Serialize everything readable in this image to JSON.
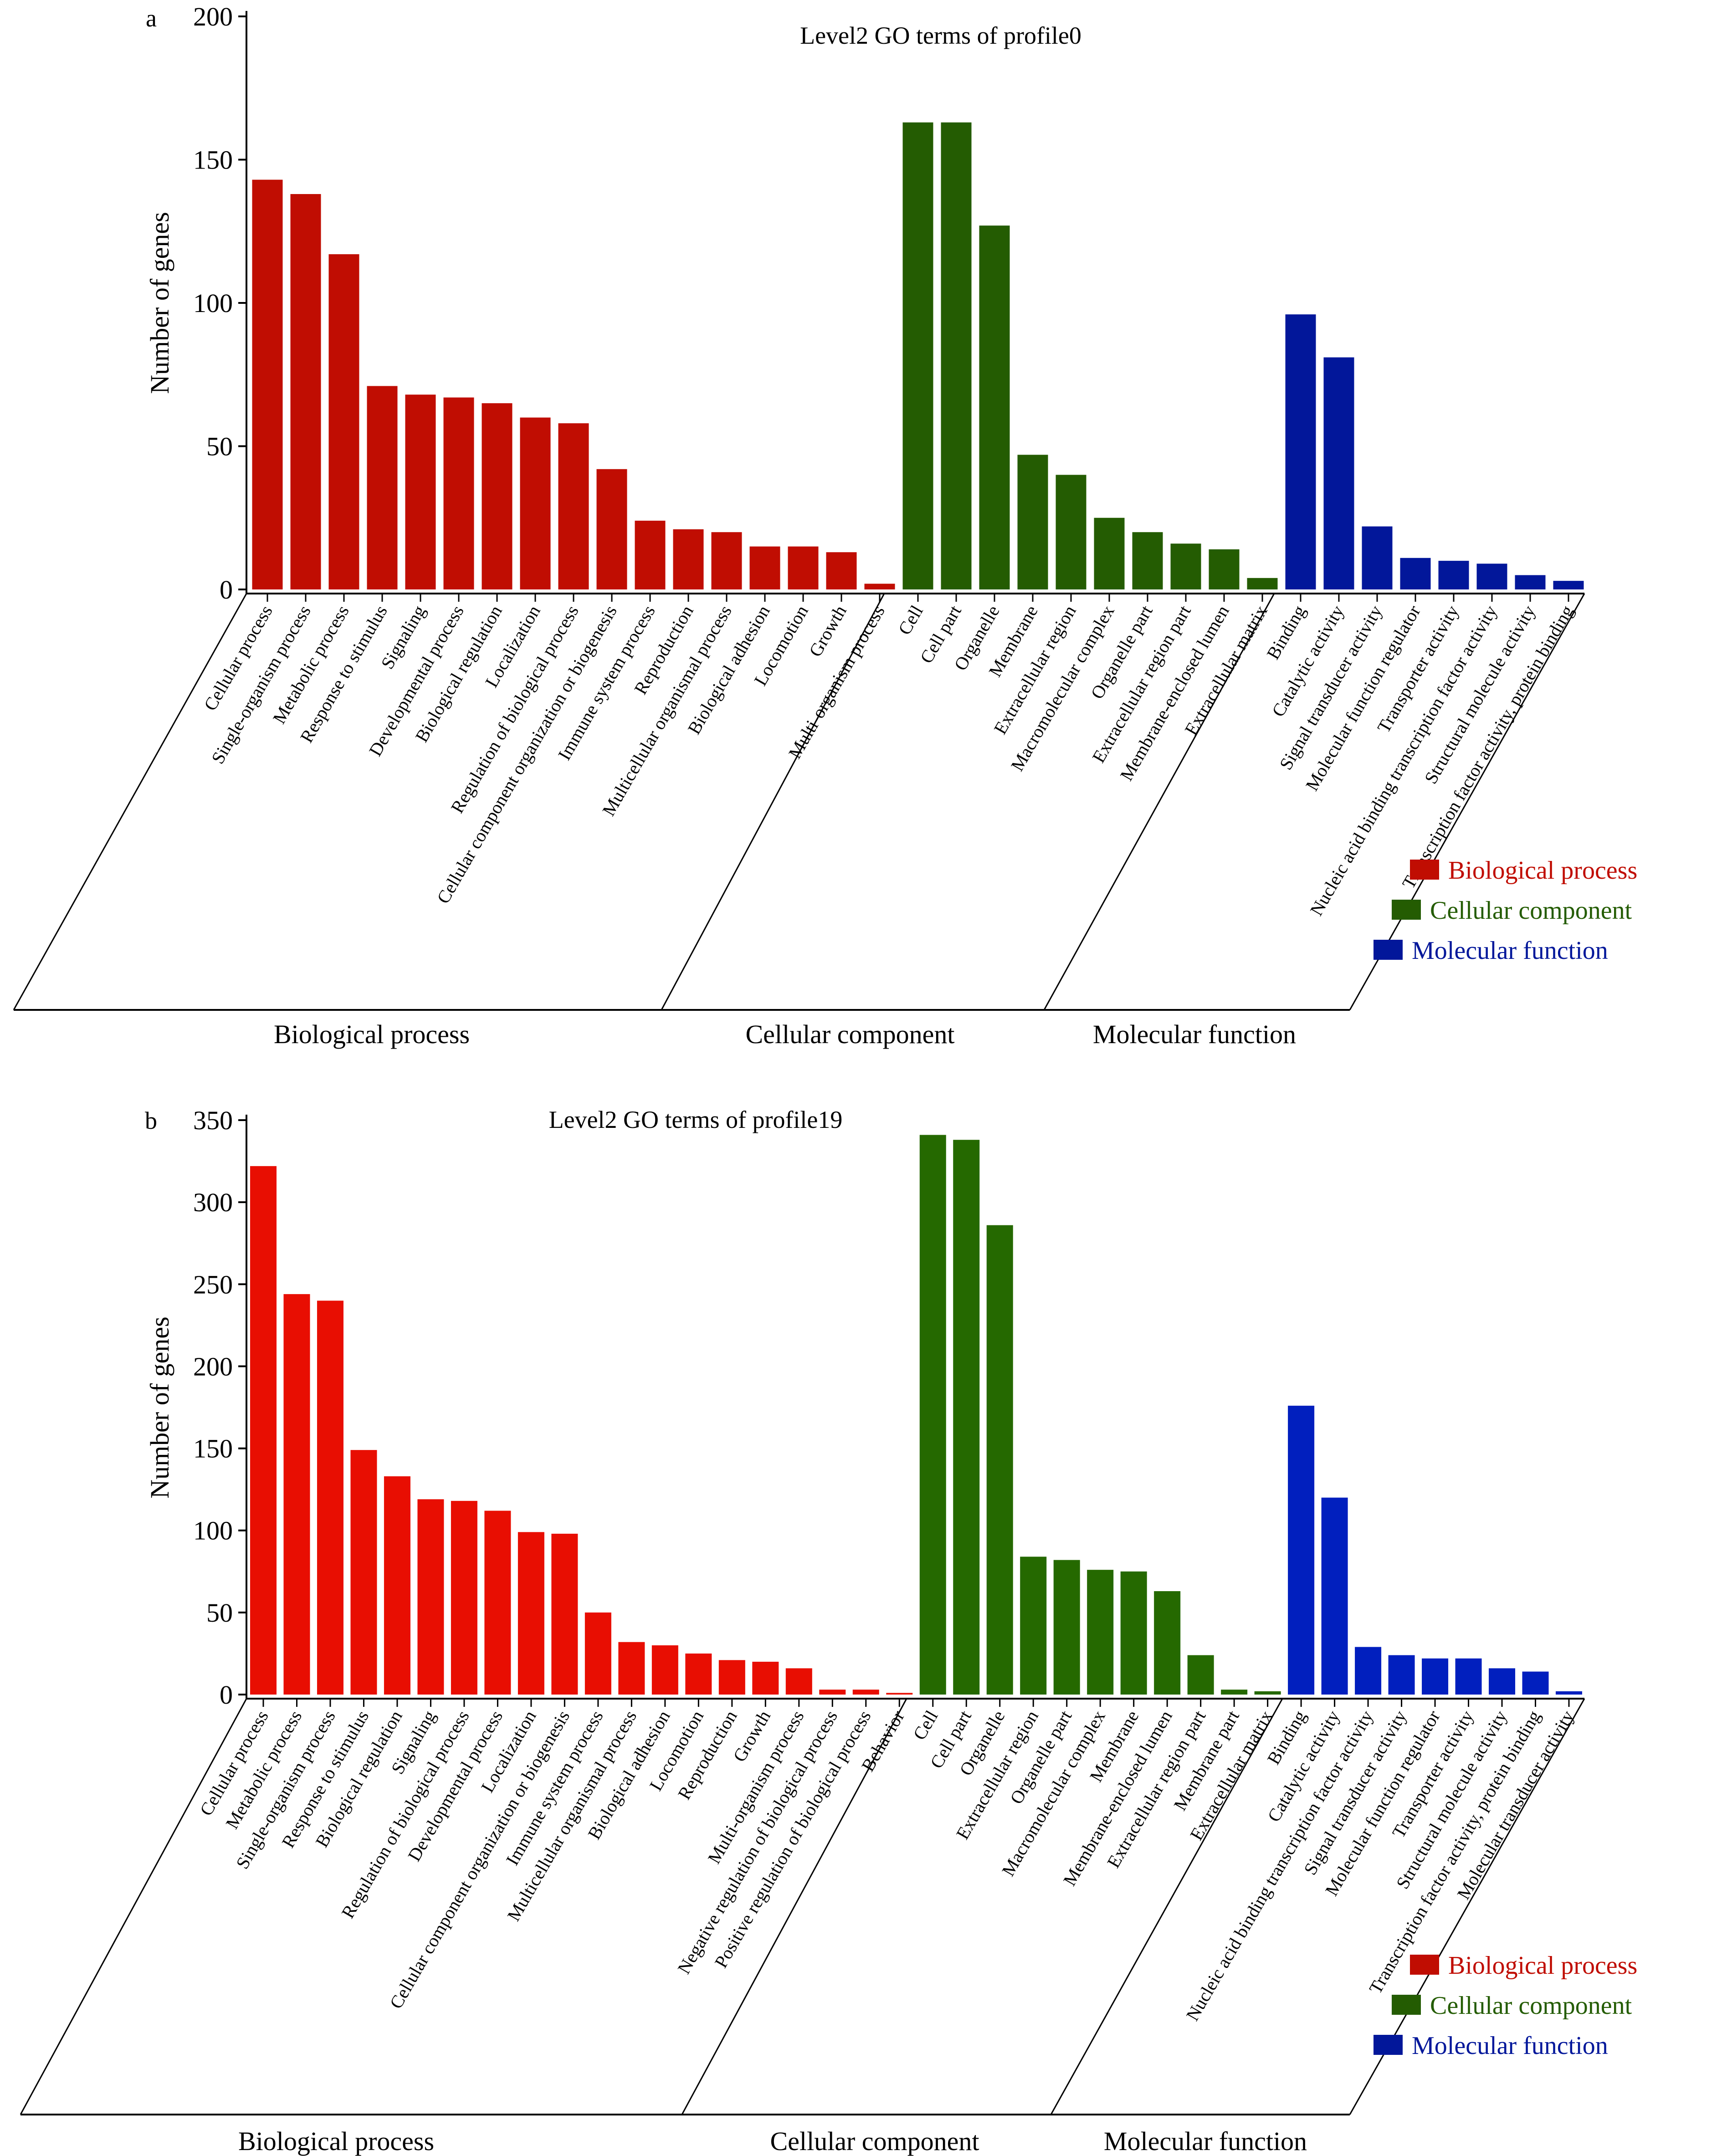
{
  "chart_data": [
    {
      "type": "bar",
      "panel_label": "a",
      "title": "Level2 GO terms of profile0",
      "ylabel": "Number of genes",
      "xlabel": "",
      "ylim": [
        0,
        200
      ],
      "yticks": [
        0,
        50,
        100,
        150,
        200
      ],
      "grid": false,
      "legend_position": "bottom-right",
      "legend": [
        {
          "name": "Biological process",
          "color": "#c00d02"
        },
        {
          "name": "Cellular component",
          "color": "#245c02"
        },
        {
          "name": "Molecular function",
          "color": "#02179a"
        }
      ],
      "groups": [
        {
          "name": "Biological process",
          "color": "#c00d02"
        },
        {
          "name": "Cellular component",
          "color": "#245c02"
        },
        {
          "name": "Molecular function",
          "color": "#02179a"
        }
      ],
      "series": [
        {
          "name": "Biological process",
          "categories": [
            "Cellular process",
            "Single-organism process",
            "Metabolic process",
            "Response to stimulus",
            "Signaling",
            "Developmental process",
            "Biological regulation",
            "Localization",
            "Regulation of biological process",
            "Cellular component organization or biogenesis",
            "Immune system process",
            "Reproduction",
            "Multicellular organismal process",
            "Biological adhesion",
            "Locomotion",
            "Growth",
            "Multi-organism process"
          ],
          "values": [
            143,
            138,
            117,
            71,
            68,
            67,
            65,
            60,
            58,
            42,
            24,
            21,
            20,
            15,
            15,
            13,
            2
          ]
        },
        {
          "name": "Cellular component",
          "categories": [
            "Cell",
            "Cell part",
            "Organelle",
            "Membrane",
            "Extracellular region",
            "Macromolecular complex",
            "Organelle part",
            "Extracellular region part",
            "Membrane-enclosed lumen",
            "Extracellular matrix"
          ],
          "values": [
            163,
            163,
            127,
            47,
            40,
            25,
            20,
            16,
            14,
            4
          ]
        },
        {
          "name": "Molecular function",
          "categories": [
            "Binding",
            "Catalytic activity",
            "Signal transducer activity",
            "Molecular function regulator",
            "Transporter activity",
            "Nucleic acid binding transcription factor activity",
            "Structural molecule activity",
            "Transcription factor activity, protein binding"
          ],
          "values": [
            96,
            81,
            22,
            11,
            10,
            9,
            5,
            3
          ]
        }
      ]
    },
    {
      "type": "bar",
      "panel_label": "b",
      "title": "Level2 GO terms of profile19",
      "ylabel": "Number of genes",
      "xlabel": "",
      "ylim": [
        0,
        350
      ],
      "yticks": [
        0,
        50,
        100,
        150,
        200,
        250,
        300,
        350
      ],
      "grid": false,
      "legend_position": "bottom-right",
      "legend": [
        {
          "name": "Biological process",
          "color": "#c00d02"
        },
        {
          "name": "Cellular component",
          "color": "#245c02"
        },
        {
          "name": "Molecular function",
          "color": "#02179a"
        }
      ],
      "groups": [
        {
          "name": "Biological process",
          "color": "#e80e02"
        },
        {
          "name": "Cellular component",
          "color": "#256900"
        },
        {
          "name": "Molecular function",
          "color": "#011fbe"
        }
      ],
      "series": [
        {
          "name": "Biological process",
          "categories": [
            "Cellular process",
            "Metabolic process",
            "Single-organism process",
            "Response to stimulus",
            "Biological regulation",
            "Signaling",
            "Regulation of biological process",
            "Developmental process",
            "Localization",
            "Cellular component organization or biogenesis",
            "Immune system process",
            "Multicellular organismal process",
            "Biological adhesion",
            "Locomotion",
            "Reproduction",
            "Growth",
            "Multi-organism process",
            "Negative regulation of biological process",
            "Positive regulation of biological process",
            "Behavior"
          ],
          "values": [
            322,
            244,
            240,
            149,
            133,
            119,
            118,
            112,
            99,
            98,
            50,
            32,
            30,
            25,
            21,
            20,
            16,
            3,
            3,
            1
          ]
        },
        {
          "name": "Cellular component",
          "categories": [
            "Cell",
            "Cell part",
            "Organelle",
            "Extracellular region",
            "Organelle part",
            "Macromolecular complex",
            "Membrane",
            "Membrane-enclosed lumen",
            "Extracellular region part",
            "Membrane part",
            "Extracellular matrix"
          ],
          "values": [
            341,
            338,
            286,
            84,
            82,
            76,
            75,
            63,
            24,
            3,
            2
          ]
        },
        {
          "name": "Molecular function",
          "categories": [
            "Binding",
            "Catalytic activity",
            "Nucleic acid binding transcription factor activity",
            "Signal transducer activity",
            "Molecular function regulator",
            "Transporter activity",
            "Structural molecule activity",
            "Transcription factor activity, protein binding",
            "Molecular transducer activity"
          ],
          "values": [
            176,
            120,
            29,
            24,
            22,
            22,
            16,
            14,
            2
          ]
        }
      ]
    }
  ]
}
